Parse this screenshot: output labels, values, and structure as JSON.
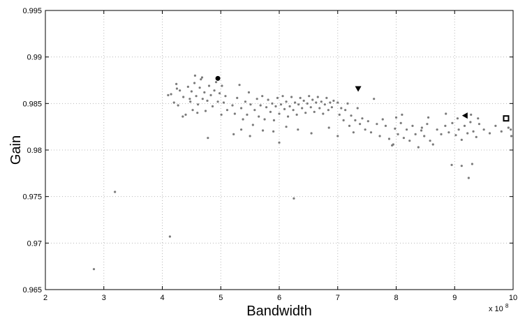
{
  "chart_data": {
    "type": "scatter",
    "xlabel": "Bandwidth",
    "ylabel": "Gain",
    "x_exponent_label": "x 10",
    "x_exponent_power": "8",
    "xlim": [
      2,
      10
    ],
    "ylim": [
      0.965,
      0.995
    ],
    "x_ticks": [
      "2",
      "3",
      "4",
      "5",
      "6",
      "7",
      "8",
      "9",
      "10"
    ],
    "y_ticks": [
      "0.965",
      "0.97",
      "0.975",
      "0.98",
      "0.985",
      "0.99",
      "0.995"
    ],
    "grid": true,
    "colors": {
      "points": "#7a7a7a",
      "markers": "#000000",
      "grid": "#b8b8b8"
    },
    "series": [
      {
        "marker": "dot",
        "points": [
          [
            2.83,
            0.9672
          ],
          [
            3.19,
            0.9755
          ],
          [
            4.13,
            0.9707
          ],
          [
            6.25,
            0.9748
          ],
          [
            4.1,
            0.9859
          ],
          [
            4.15,
            0.986
          ],
          [
            4.2,
            0.9851
          ],
          [
            4.24,
            0.9871
          ],
          [
            4.27,
            0.9848
          ],
          [
            4.3,
            0.9864
          ],
          [
            4.36,
            0.9857
          ],
          [
            4.4,
            0.9838
          ],
          [
            4.44,
            0.9868
          ],
          [
            4.47,
            0.9855
          ],
          [
            4.5,
            0.9863
          ],
          [
            4.52,
            0.9843
          ],
          [
            4.55,
            0.9872
          ],
          [
            4.58,
            0.9858
          ],
          [
            4.61,
            0.9849
          ],
          [
            4.64,
            0.9867
          ],
          [
            4.66,
            0.9876
          ],
          [
            4.69,
            0.9855
          ],
          [
            4.72,
            0.9862
          ],
          [
            4.74,
            0.9842
          ],
          [
            4.77,
            0.9853
          ],
          [
            4.8,
            0.9869
          ],
          [
            4.83,
            0.9859
          ],
          [
            4.86,
            0.9847
          ],
          [
            4.89,
            0.9864
          ],
          [
            4.92,
            0.9873
          ],
          [
            4.95,
            0.9852
          ],
          [
            4.98,
            0.9861
          ],
          [
            5.02,
            0.9869
          ],
          [
            5.05,
            0.9851
          ],
          [
            5.08,
            0.9858
          ],
          [
            5.11,
            0.9843
          ],
          [
            4.6,
            0.984
          ],
          [
            4.48,
            0.9852
          ],
          [
            4.35,
            0.9836
          ],
          [
            4.25,
            0.9866
          ],
          [
            4.78,
            0.9813
          ],
          [
            5.01,
            0.9838
          ],
          [
            4.56,
            0.988
          ],
          [
            4.68,
            0.9878
          ],
          [
            5.2,
            0.9848
          ],
          [
            5.24,
            0.9839
          ],
          [
            5.28,
            0.9856
          ],
          [
            5.32,
            0.987
          ],
          [
            5.35,
            0.9845
          ],
          [
            5.38,
            0.9833
          ],
          [
            5.42,
            0.9852
          ],
          [
            5.45,
            0.9838
          ],
          [
            5.48,
            0.9862
          ],
          [
            5.51,
            0.9849
          ],
          [
            5.55,
            0.9827
          ],
          [
            5.58,
            0.9843
          ],
          [
            5.62,
            0.9855
          ],
          [
            5.65,
            0.9836
          ],
          [
            5.68,
            0.9848
          ],
          [
            5.71,
            0.9858
          ],
          [
            5.75,
            0.9833
          ],
          [
            5.78,
            0.9846
          ],
          [
            5.81,
            0.9854
          ],
          [
            5.85,
            0.9841
          ],
          [
            5.88,
            0.985
          ],
          [
            5.91,
            0.9832
          ],
          [
            5.94,
            0.9847
          ],
          [
            5.97,
            0.9856
          ],
          [
            6.0,
            0.9839
          ],
          [
            6.03,
            0.9849
          ],
          [
            6.06,
            0.9858
          ],
          [
            6.09,
            0.9844
          ],
          [
            6.12,
            0.9852
          ],
          [
            6.15,
            0.9836
          ],
          [
            6.18,
            0.9847
          ],
          [
            6.21,
            0.9857
          ],
          [
            6.24,
            0.9843
          ],
          [
            6.27,
            0.9851
          ],
          [
            6.3,
            0.9838
          ],
          [
            6.33,
            0.9849
          ],
          [
            6.36,
            0.9856
          ],
          [
            6.39,
            0.9845
          ],
          [
            6.42,
            0.9853
          ],
          [
            6.45,
            0.984
          ],
          [
            6.48,
            0.985
          ],
          [
            6.51,
            0.9858
          ],
          [
            6.54,
            0.9846
          ],
          [
            6.57,
            0.9854
          ],
          [
            6.6,
            0.9841
          ],
          [
            6.63,
            0.9851
          ],
          [
            6.66,
            0.9857
          ],
          [
            6.69,
            0.9845
          ],
          [
            6.72,
            0.9852
          ],
          [
            6.75,
            0.9839
          ],
          [
            6.78,
            0.9849
          ],
          [
            6.81,
            0.9856
          ],
          [
            6.84,
            0.9843
          ],
          [
            6.87,
            0.9851
          ],
          [
            6.9,
            0.9846
          ],
          [
            6.93,
            0.9853
          ],
          [
            5.9,
            0.982
          ],
          [
            6.0,
            0.9808
          ],
          [
            5.72,
            0.9821
          ],
          [
            5.35,
            0.9822
          ],
          [
            5.5,
            0.9815
          ],
          [
            6.32,
            0.9822
          ],
          [
            6.55,
            0.9818
          ],
          [
            6.85,
            0.9824
          ],
          [
            5.22,
            0.9817
          ],
          [
            6.12,
            0.9825
          ],
          [
            7.0,
            0.9851
          ],
          [
            7.03,
            0.9838
          ],
          [
            7.06,
            0.9845
          ],
          [
            7.1,
            0.9832
          ],
          [
            7.13,
            0.9843
          ],
          [
            7.17,
            0.985
          ],
          [
            7.2,
            0.9826
          ],
          [
            7.23,
            0.9837
          ],
          [
            7.27,
            0.9819
          ],
          [
            7.3,
            0.9832
          ],
          [
            7.34,
            0.9845
          ],
          [
            7.38,
            0.9828
          ],
          [
            7.42,
            0.9834
          ],
          [
            7.47,
            0.9822
          ],
          [
            7.52,
            0.9831
          ],
          [
            7.57,
            0.9819
          ],
          [
            7.62,
            0.9855
          ],
          [
            7.67,
            0.9828
          ],
          [
            7.72,
            0.9815
          ],
          [
            7.77,
            0.9833
          ],
          [
            7.82,
            0.9826
          ],
          [
            7.88,
            0.9812
          ],
          [
            7.93,
            0.9805
          ],
          [
            7.98,
            0.9823
          ],
          [
            8.03,
            0.9817
          ],
          [
            8.08,
            0.9829
          ],
          [
            8.13,
            0.9813
          ],
          [
            8.18,
            0.9822
          ],
          [
            8.23,
            0.981
          ],
          [
            8.28,
            0.9826
          ],
          [
            8.33,
            0.9817
          ],
          [
            8.38,
            0.9803
          ],
          [
            8.43,
            0.9821
          ],
          [
            8.48,
            0.9815
          ],
          [
            8.53,
            0.9828
          ],
          [
            8.58,
            0.981
          ],
          [
            8.63,
            0.9806
          ],
          [
            8.7,
            0.9822
          ],
          [
            8.77,
            0.9817
          ],
          [
            8.84,
            0.9826
          ],
          [
            8.9,
            0.9819
          ],
          [
            8.96,
            0.9829
          ],
          [
            9.02,
            0.9816
          ],
          [
            9.07,
            0.9822
          ],
          [
            9.12,
            0.9811
          ],
          [
            9.17,
            0.9826
          ],
          [
            9.22,
            0.9818
          ],
          [
            9.27,
            0.983
          ],
          [
            9.32,
            0.982
          ],
          [
            9.37,
            0.9814
          ],
          [
            9.42,
            0.9828
          ],
          [
            9.5,
            0.9822
          ],
          [
            9.6,
            0.9818
          ],
          [
            9.7,
            0.9826
          ],
          [
            9.8,
            0.982
          ],
          [
            9.92,
            0.9824
          ],
          [
            9.97,
            0.9815
          ],
          [
            8.95,
            0.9784
          ],
          [
            9.12,
            0.9783
          ],
          [
            9.3,
            0.9785
          ],
          [
            9.24,
            0.977
          ],
          [
            7.95,
            0.9806
          ],
          [
            8.0,
            0.9835
          ],
          [
            8.44,
            0.9824
          ],
          [
            8.1,
            0.9838
          ],
          [
            8.55,
            0.9835
          ],
          [
            8.85,
            0.9839
          ],
          [
            9.05,
            0.9834
          ],
          [
            9.4,
            0.9834
          ],
          [
            9.28,
            0.9838
          ],
          [
            9.96,
            0.9822
          ],
          [
            7.0,
            0.9815
          ]
        ]
      },
      {
        "marker": "circle",
        "points": [
          [
            4.95,
            0.9877
          ]
        ]
      },
      {
        "marker": "triangle-down",
        "points": [
          [
            7.35,
            0.9866
          ]
        ]
      },
      {
        "marker": "triangle-left",
        "points": [
          [
            9.18,
            0.9837
          ]
        ]
      },
      {
        "marker": "square",
        "points": [
          [
            9.88,
            0.9834
          ]
        ]
      }
    ]
  }
}
